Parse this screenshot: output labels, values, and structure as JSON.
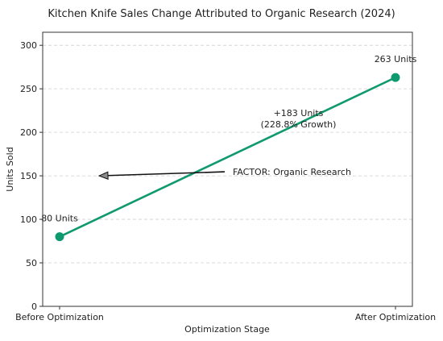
{
  "chart_data": {
    "type": "line",
    "title": "Kitchen Knife Sales Change Attributed to Organic Research (2024)",
    "xlabel": "Optimization Stage",
    "ylabel": "Units Sold",
    "categories": [
      "Before Optimization",
      "After Optimization"
    ],
    "series": [
      {
        "values": [
          80,
          263
        ],
        "color": "#0e9a6e"
      }
    ],
    "ylim": [
      0,
      315
    ],
    "yticks": [
      0,
      50,
      100,
      150,
      200,
      250,
      300
    ],
    "grid": "horizontal-dashed",
    "point_labels": [
      "80 Units",
      "263 Units"
    ],
    "change_label_line1": "+183 Units",
    "change_label_line2": "(228.8% Growth)",
    "factor_label": "FACTOR: Organic Research",
    "arrow_target_value": 150
  }
}
